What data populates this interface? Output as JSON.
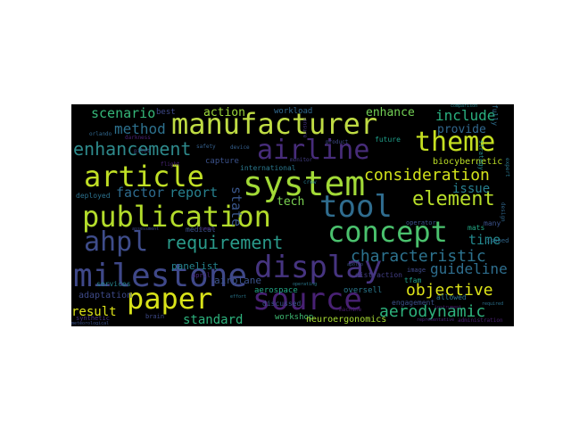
{
  "wordcloud": {
    "background": "#000000",
    "words": [
      {
        "text": "manufacturer",
        "color": "#bfdc43"
      },
      {
        "text": "airline",
        "color": "#472c7a"
      },
      {
        "text": "theme",
        "color": "#c5e021"
      },
      {
        "text": "article",
        "color": "#c0df25"
      },
      {
        "text": "system",
        "color": "#a2da37"
      },
      {
        "text": "enhancement",
        "color": "#2e8a8c"
      },
      {
        "text": "publication",
        "color": "#b3dc2b"
      },
      {
        "text": "tool",
        "color": "#2f6c8e"
      },
      {
        "text": "concept",
        "color": "#4ac16d"
      },
      {
        "text": "element",
        "color": "#b8de29"
      },
      {
        "text": "ahpl",
        "color": "#3e4c8a"
      },
      {
        "text": "requirement",
        "color": "#2a9a8a"
      },
      {
        "text": "display",
        "color": "#463480"
      },
      {
        "text": "milestone",
        "color": "#3f4889"
      },
      {
        "text": "source",
        "color": "#482173"
      },
      {
        "text": "paper",
        "color": "#d8e219"
      },
      {
        "text": "consideration",
        "color": "#d2e21b"
      },
      {
        "text": "characteristic",
        "color": "#2c728e"
      },
      {
        "text": "guideline",
        "color": "#2e6e8e"
      },
      {
        "text": "objective",
        "color": "#dde318"
      },
      {
        "text": "aerodynamic",
        "color": "#2db27d"
      },
      {
        "text": "scenario",
        "color": "#35b779"
      },
      {
        "text": "method",
        "color": "#2d718e"
      },
      {
        "text": "factor",
        "color": "#2e6b8e"
      },
      {
        "text": "report",
        "color": "#27808e"
      },
      {
        "text": "include",
        "color": "#29af7f"
      },
      {
        "text": "provide",
        "color": "#31678e"
      },
      {
        "text": "issue",
        "color": "#277f8e"
      },
      {
        "text": "time",
        "color": "#23898e"
      },
      {
        "text": "enhance",
        "color": "#73d055"
      },
      {
        "text": "action",
        "color": "#9dd93b"
      },
      {
        "text": "standard",
        "color": "#2db27d"
      },
      {
        "text": "result",
        "color": "#dde318"
      },
      {
        "text": "state",
        "color": "#39568c"
      },
      {
        "text": "tech",
        "color": "#7ad151"
      },
      {
        "text": "adaptation",
        "color": "#3e4a89"
      },
      {
        "text": "airplane",
        "color": "#3b528b"
      },
      {
        "text": "panelist",
        "color": "#25838e"
      },
      {
        "text": "aerospace",
        "color": "#21a685"
      },
      {
        "text": "oversell",
        "color": "#2a788e"
      },
      {
        "text": "workshop",
        "color": "#3fbc73"
      },
      {
        "text": "neuroergonomics",
        "color": "#a8db34"
      },
      {
        "text": "biocybernetic",
        "color": "#bddf26"
      },
      {
        "text": "workload",
        "color": "#31688e"
      },
      {
        "text": "best",
        "color": "#3e4989"
      },
      {
        "text": "capture",
        "color": "#3b528b"
      },
      {
        "text": "international",
        "color": "#2a788e"
      },
      {
        "text": "future",
        "color": "#1f9e89"
      },
      {
        "text": "medical",
        "color": "#3b528b"
      },
      {
        "text": "services",
        "color": "#26828e"
      },
      {
        "text": "april",
        "color": "#482677"
      },
      {
        "text": "deployed",
        "color": "#2c728e"
      },
      {
        "text": "discussed",
        "color": "#3b528b"
      },
      {
        "text": "distraction",
        "color": "#433e85"
      },
      {
        "text": "image",
        "color": "#3e4a89"
      },
      {
        "text": "tfam",
        "color": "#1fa088"
      },
      {
        "text": "engagement",
        "color": "#3b528b"
      },
      {
        "text": "allowed",
        "color": "#2c728e"
      },
      {
        "text": "many",
        "color": "#3b528b"
      },
      {
        "text": "mats",
        "color": "#22a884"
      },
      {
        "text": "issued",
        "color": "#31688e"
      },
      {
        "text": "operator",
        "color": "#3b528b"
      },
      {
        "text": "synthetic",
        "color": "#46337f"
      },
      {
        "text": "brain",
        "color": "#3e4a89"
      },
      {
        "text": "fully",
        "color": "#2e6f8e"
      },
      {
        "text": "orlando",
        "color": "#31688e"
      },
      {
        "text": "darkness",
        "color": "#482173"
      },
      {
        "text": "device",
        "color": "#355f8d"
      },
      {
        "text": "strategy",
        "color": "#238a8d"
      },
      {
        "text": "machine",
        "color": "#481b6d"
      },
      {
        "text": "instrument",
        "color": "#481769"
      },
      {
        "text": "assessment",
        "color": "#3e4989"
      },
      {
        "text": "common",
        "color": "#482475"
      },
      {
        "text": "apollo",
        "color": "#3b528b"
      },
      {
        "text": "effort",
        "color": "#2a788e"
      },
      {
        "text": "comparison",
        "color": "#25848e"
      },
      {
        "text": "required",
        "color": "#2c728e"
      },
      {
        "text": "meteorological",
        "color": "#3b528b"
      },
      {
        "text": "representative",
        "color": "#482878"
      },
      {
        "text": "administration",
        "color": "#481f70"
      },
      {
        "text": "operating",
        "color": "#2a788e"
      },
      {
        "text": "ensure",
        "color": "#453581"
      },
      {
        "text": "product",
        "color": "#3e4a89"
      },
      {
        "text": "monitor",
        "color": "#433e85"
      },
      {
        "text": "safety",
        "color": "#35608d"
      },
      {
        "text": "expert",
        "color": "#2a778e"
      },
      {
        "text": "design",
        "color": "#31688e"
      },
      {
        "text": "pilot",
        "color": "#3e4a89"
      },
      {
        "text": "flight",
        "color": "#482475"
      },
      {
        "text": "crew",
        "color": "#277f8e"
      }
    ]
  }
}
